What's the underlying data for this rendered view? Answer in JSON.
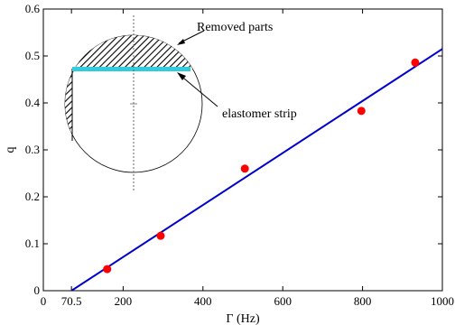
{
  "chart_data": {
    "type": "scatter",
    "xlabel": "Γ (Hz)",
    "ylabel": "q",
    "xlim": [
      0,
      1000
    ],
    "ylim": [
      0,
      0.6
    ],
    "x_ticks": [
      {
        "value": 0,
        "label": "0"
      },
      {
        "value": 70.5,
        "label": "70.5"
      },
      {
        "value": 200,
        "label": "200"
      },
      {
        "value": 400,
        "label": "400"
      },
      {
        "value": 600,
        "label": "600"
      },
      {
        "value": 800,
        "label": "800"
      },
      {
        "value": 1000,
        "label": "1000"
      }
    ],
    "y_ticks": [
      {
        "value": 0,
        "label": "0"
      },
      {
        "value": 0.1,
        "label": "0.1"
      },
      {
        "value": 0.2,
        "label": "0.2"
      },
      {
        "value": 0.3,
        "label": "0.3"
      },
      {
        "value": 0.4,
        "label": "0.4"
      },
      {
        "value": 0.5,
        "label": "0.5"
      },
      {
        "value": 0.6,
        "label": "0.6"
      }
    ],
    "grid": false,
    "points": {
      "color": "#ff0000",
      "x": [
        160,
        294,
        505,
        797,
        932
      ],
      "y": [
        0.046,
        0.117,
        0.26,
        0.383,
        0.486
      ]
    },
    "fit_line": {
      "color": "#0000cc",
      "x": [
        70.5,
        1000
      ],
      "y": [
        0.0,
        0.515
      ]
    },
    "inset": {
      "annotations": {
        "removed": "Removed parts",
        "strip": "elastomer strip"
      },
      "strip_color": "#33ccdd"
    }
  }
}
